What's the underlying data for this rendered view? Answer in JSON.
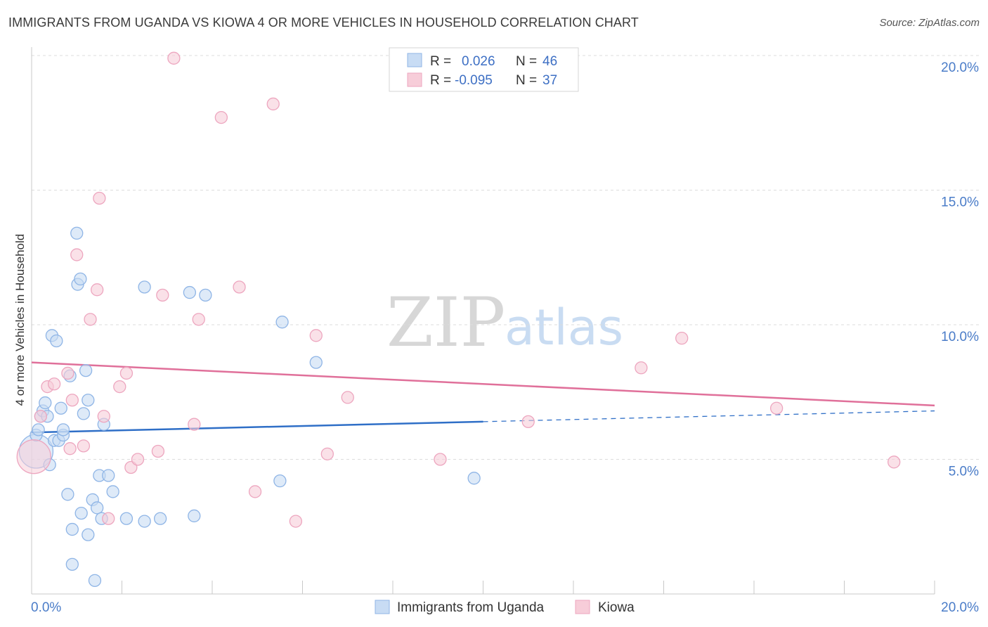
{
  "chart_data": {
    "type": "scatter",
    "title": "IMMIGRANTS FROM UGANDA VS KIOWA 4 OR MORE VEHICLES IN HOUSEHOLD CORRELATION CHART",
    "source": "Source: ZipAtlas.com",
    "ylabel": "4 or more Vehicles in Household",
    "xlabel": "",
    "xlim": [
      0,
      20
    ],
    "ylim": [
      0,
      20.5
    ],
    "x_tick_labels": {
      "left": "0.0%",
      "right": "20.0%"
    },
    "y_ticks": [
      {
        "value": 5,
        "label": "5.0%"
      },
      {
        "value": 10,
        "label": "10.0%"
      },
      {
        "value": 15,
        "label": "15.0%"
      },
      {
        "value": 20,
        "label": "20.0%"
      }
    ],
    "legend": {
      "rows": [
        {
          "r_label": "R =",
          "r_value": "0.026",
          "n_label": "N =",
          "n_value": "46"
        },
        {
          "r_label": "R =",
          "r_value": "-0.095",
          "n_label": "N =",
          "n_value": "37"
        }
      ]
    },
    "bottom_legend": [
      "Immigrants from Uganda",
      "Kiowa"
    ],
    "watermark": {
      "zip": "ZIP",
      "atlas": "atlas"
    },
    "series": [
      {
        "name": "Immigrants from Uganda",
        "color": "#8fb5e6",
        "fill": "#c8dcf4",
        "line_color": "#2f6fc7",
        "trend": {
          "x0": 0,
          "y0": 6.0,
          "x1": 10,
          "y1": 6.4,
          "dash_x1": 20,
          "dash_y1": 6.8
        },
        "points": [
          {
            "x": 0.1,
            "y": 5.3,
            "big": true
          },
          {
            "x": 0.1,
            "y": 5.9
          },
          {
            "x": 0.15,
            "y": 6.1
          },
          {
            "x": 0.2,
            "y": 6.6
          },
          {
            "x": 0.25,
            "y": 6.8
          },
          {
            "x": 0.3,
            "y": 7.1
          },
          {
            "x": 0.35,
            "y": 6.6
          },
          {
            "x": 0.4,
            "y": 4.8
          },
          {
            "x": 0.45,
            "y": 9.6
          },
          {
            "x": 0.5,
            "y": 5.7
          },
          {
            "x": 0.55,
            "y": 9.4
          },
          {
            "x": 0.6,
            "y": 5.7
          },
          {
            "x": 0.65,
            "y": 6.9
          },
          {
            "x": 0.7,
            "y": 5.9
          },
          {
            "x": 0.7,
            "y": 6.1
          },
          {
            "x": 0.8,
            "y": 3.7
          },
          {
            "x": 0.85,
            "y": 8.1
          },
          {
            "x": 0.9,
            "y": 2.4
          },
          {
            "x": 0.9,
            "y": 1.1
          },
          {
            "x": 1.0,
            "y": 13.4
          },
          {
            "x": 1.02,
            "y": 11.5
          },
          {
            "x": 1.08,
            "y": 11.7
          },
          {
            "x": 1.1,
            "y": 3.0
          },
          {
            "x": 1.15,
            "y": 6.7
          },
          {
            "x": 1.2,
            "y": 8.3
          },
          {
            "x": 1.25,
            "y": 7.2
          },
          {
            "x": 1.25,
            "y": 2.2
          },
          {
            "x": 1.35,
            "y": 3.5
          },
          {
            "x": 1.4,
            "y": 0.5
          },
          {
            "x": 1.45,
            "y": 3.2
          },
          {
            "x": 1.5,
            "y": 4.4
          },
          {
            "x": 1.55,
            "y": 2.8
          },
          {
            "x": 1.6,
            "y": 6.3
          },
          {
            "x": 1.7,
            "y": 4.4
          },
          {
            "x": 1.8,
            "y": 3.8
          },
          {
            "x": 2.1,
            "y": 2.8
          },
          {
            "x": 2.5,
            "y": 11.4
          },
          {
            "x": 2.5,
            "y": 2.7
          },
          {
            "x": 2.85,
            "y": 2.8
          },
          {
            "x": 3.5,
            "y": 11.2
          },
          {
            "x": 3.6,
            "y": 2.9
          },
          {
            "x": 3.85,
            "y": 11.1
          },
          {
            "x": 5.5,
            "y": 4.2
          },
          {
            "x": 5.55,
            "y": 10.1
          },
          {
            "x": 6.3,
            "y": 8.6
          },
          {
            "x": 9.8,
            "y": 4.3
          }
        ]
      },
      {
        "name": "Kiowa",
        "color": "#eda6bf",
        "fill": "#f7cdd9",
        "line_color": "#e0709a",
        "trend": {
          "x0": 0,
          "y0": 8.6,
          "x1": 20,
          "y1": 7.0
        },
        "points": [
          {
            "x": 0.05,
            "y": 5.1,
            "big": true
          },
          {
            "x": 0.2,
            "y": 6.6
          },
          {
            "x": 0.35,
            "y": 7.7
          },
          {
            "x": 0.5,
            "y": 7.8
          },
          {
            "x": 0.8,
            "y": 8.2
          },
          {
            "x": 0.85,
            "y": 5.4
          },
          {
            "x": 0.9,
            "y": 7.2
          },
          {
            "x": 1.0,
            "y": 12.6
          },
          {
            "x": 1.15,
            "y": 5.5
          },
          {
            "x": 1.3,
            "y": 10.2
          },
          {
            "x": 1.45,
            "y": 11.3
          },
          {
            "x": 1.5,
            "y": 14.7
          },
          {
            "x": 1.6,
            "y": 6.6
          },
          {
            "x": 1.7,
            "y": 2.8
          },
          {
            "x": 1.95,
            "y": 7.7
          },
          {
            "x": 2.1,
            "y": 8.2
          },
          {
            "x": 2.2,
            "y": 4.7
          },
          {
            "x": 2.35,
            "y": 5.0
          },
          {
            "x": 2.8,
            "y": 5.3
          },
          {
            "x": 2.9,
            "y": 11.1
          },
          {
            "x": 3.15,
            "y": 19.9
          },
          {
            "x": 3.6,
            "y": 6.3
          },
          {
            "x": 3.7,
            "y": 10.2
          },
          {
            "x": 4.2,
            "y": 17.7
          },
          {
            "x": 4.6,
            "y": 11.4
          },
          {
            "x": 4.95,
            "y": 3.8
          },
          {
            "x": 5.35,
            "y": 18.2
          },
          {
            "x": 5.85,
            "y": 2.7
          },
          {
            "x": 6.3,
            "y": 9.6
          },
          {
            "x": 6.55,
            "y": 5.2
          },
          {
            "x": 7.0,
            "y": 7.3
          },
          {
            "x": 9.05,
            "y": 5.0
          },
          {
            "x": 11.0,
            "y": 6.4
          },
          {
            "x": 13.5,
            "y": 8.4
          },
          {
            "x": 14.4,
            "y": 9.5
          },
          {
            "x": 16.5,
            "y": 6.9
          },
          {
            "x": 19.1,
            "y": 4.9
          }
        ]
      }
    ]
  }
}
